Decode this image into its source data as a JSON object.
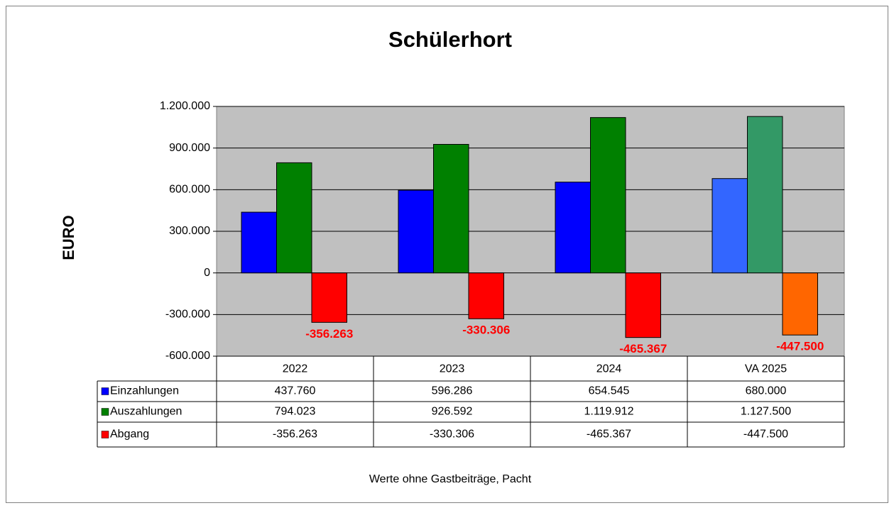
{
  "chart_data": {
    "type": "bar",
    "title": "Schülerhort",
    "y_label": "EURO",
    "note": "Werte ohne Gastbeiträge, Pacht",
    "categories": [
      "2022",
      "2023",
      "2024",
      "VA 2025"
    ],
    "series": [
      {
        "name": "Einzahlungen",
        "color": "#0000ff",
        "colors": [
          "#0000ff",
          "#0000ff",
          "#0000ff",
          "#3366ff"
        ],
        "values": [
          437760,
          596286,
          654545,
          680000
        ],
        "value_labels": [
          "437.760",
          "596.286",
          "654.545",
          "680.000"
        ]
      },
      {
        "name": "Auszahlungen",
        "color": "#008000",
        "colors": [
          "#008000",
          "#008000",
          "#008000",
          "#339966"
        ],
        "values": [
          794023,
          926592,
          1119912,
          1127500
        ],
        "value_labels": [
          "794.023",
          "926.592",
          "1.119.912",
          "1.127.500"
        ]
      },
      {
        "name": "Abgang",
        "color": "#ff0000",
        "colors": [
          "#ff0000",
          "#ff0000",
          "#ff0000",
          "#ff6600"
        ],
        "values": [
          -356263,
          -330306,
          -465367,
          -447500
        ],
        "value_labels": [
          "-356.263",
          "-330.306",
          "-465.367",
          "-447.500"
        ],
        "data_labels": true
      }
    ],
    "ylim": [
      -600000,
      1200000
    ],
    "yticks": [
      {
        "value": -600000,
        "label": "-600.000"
      },
      {
        "value": -300000,
        "label": "-300.000"
      },
      0,
      {
        "value": 300000,
        "label": "300.000"
      },
      {
        "value": 600000,
        "label": "600.000"
      },
      {
        "value": 900000,
        "label": "900.000"
      },
      {
        "value": 1200000,
        "label": "1.200.000"
      }
    ],
    "grid": true,
    "plot_background": "#c0c0c0",
    "data_label_color": "#ff0000",
    "data_table": true
  }
}
